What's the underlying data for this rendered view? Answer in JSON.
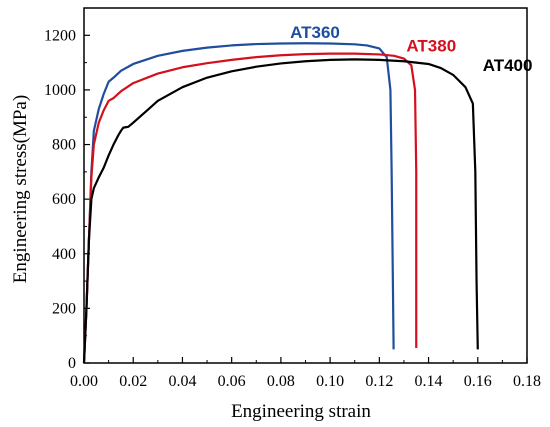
{
  "chart_data": {
    "type": "line",
    "title": "",
    "xlabel": "Engineering strain",
    "ylabel": "Engineering stress(MPa)",
    "xlim": [
      0.0,
      0.18
    ],
    "ylim": [
      0,
      1300
    ],
    "xticks": [
      "0.00",
      "0.02",
      "0.04",
      "0.06",
      "0.08",
      "0.10",
      "0.12",
      "0.14",
      "0.16",
      "0.18"
    ],
    "yticks": [
      "0",
      "200",
      "400",
      "600",
      "800",
      "1000",
      "1200"
    ],
    "grid": false,
    "legend": "inline labels near curve ends",
    "series": [
      {
        "name": "AT360",
        "color": "#1f4e9e",
        "points": [
          [
            0.0,
            0
          ],
          [
            0.001,
            200
          ],
          [
            0.002,
            450
          ],
          [
            0.003,
            700
          ],
          [
            0.004,
            850
          ],
          [
            0.006,
            930
          ],
          [
            0.008,
            985
          ],
          [
            0.01,
            1030
          ],
          [
            0.012,
            1045
          ],
          [
            0.015,
            1070
          ],
          [
            0.02,
            1095
          ],
          [
            0.03,
            1125
          ],
          [
            0.04,
            1143
          ],
          [
            0.05,
            1155
          ],
          [
            0.06,
            1163
          ],
          [
            0.07,
            1168
          ],
          [
            0.08,
            1170
          ],
          [
            0.09,
            1171
          ],
          [
            0.1,
            1170
          ],
          [
            0.11,
            1167
          ],
          [
            0.115,
            1163
          ],
          [
            0.12,
            1152
          ],
          [
            0.123,
            1120
          ],
          [
            0.1245,
            1000
          ],
          [
            0.125,
            700
          ],
          [
            0.1255,
            300
          ],
          [
            0.1258,
            50
          ]
        ]
      },
      {
        "name": "AT380",
        "color": "#d4101e",
        "points": [
          [
            0.0,
            0
          ],
          [
            0.001,
            200
          ],
          [
            0.002,
            450
          ],
          [
            0.003,
            680
          ],
          [
            0.004,
            800
          ],
          [
            0.006,
            880
          ],
          [
            0.008,
            925
          ],
          [
            0.01,
            960
          ],
          [
            0.012,
            970
          ],
          [
            0.015,
            995
          ],
          [
            0.02,
            1025
          ],
          [
            0.03,
            1060
          ],
          [
            0.04,
            1083
          ],
          [
            0.05,
            1098
          ],
          [
            0.06,
            1110
          ],
          [
            0.07,
            1120
          ],
          [
            0.08,
            1127
          ],
          [
            0.09,
            1131
          ],
          [
            0.1,
            1133
          ],
          [
            0.11,
            1133
          ],
          [
            0.12,
            1130
          ],
          [
            0.126,
            1125
          ],
          [
            0.13,
            1115
          ],
          [
            0.133,
            1090
          ],
          [
            0.1345,
            1000
          ],
          [
            0.135,
            700
          ],
          [
            0.135,
            300
          ],
          [
            0.135,
            55
          ]
        ]
      },
      {
        "name": "AT400",
        "color": "#000000",
        "points": [
          [
            0.0,
            0
          ],
          [
            0.001,
            200
          ],
          [
            0.002,
            450
          ],
          [
            0.003,
            600
          ],
          [
            0.004,
            640
          ],
          [
            0.006,
            680
          ],
          [
            0.008,
            715
          ],
          [
            0.01,
            760
          ],
          [
            0.012,
            800
          ],
          [
            0.014,
            835
          ],
          [
            0.015,
            850
          ],
          [
            0.016,
            862
          ],
          [
            0.018,
            865
          ],
          [
            0.02,
            880
          ],
          [
            0.025,
            920
          ],
          [
            0.03,
            960
          ],
          [
            0.04,
            1010
          ],
          [
            0.05,
            1045
          ],
          [
            0.06,
            1068
          ],
          [
            0.07,
            1085
          ],
          [
            0.08,
            1097
          ],
          [
            0.09,
            1105
          ],
          [
            0.1,
            1110
          ],
          [
            0.11,
            1112
          ],
          [
            0.12,
            1110
          ],
          [
            0.13,
            1105
          ],
          [
            0.14,
            1095
          ],
          [
            0.145,
            1080
          ],
          [
            0.15,
            1055
          ],
          [
            0.155,
            1010
          ],
          [
            0.158,
            950
          ],
          [
            0.159,
            700
          ],
          [
            0.1595,
            300
          ],
          [
            0.16,
            50
          ]
        ]
      }
    ]
  }
}
